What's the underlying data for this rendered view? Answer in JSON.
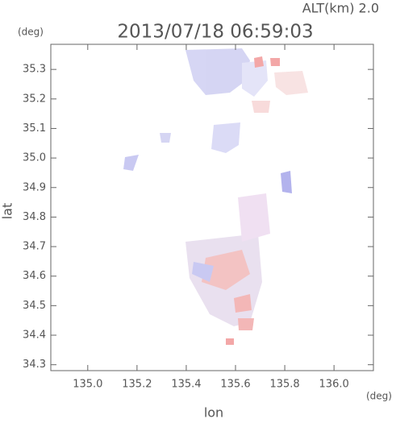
{
  "chart_data": {
    "type": "map",
    "title": "2013/07/18 06:59:03",
    "subtitle": "ALT(km) 2.0",
    "y_unit": "(deg)",
    "x_unit": "(deg)",
    "y_label": "lat",
    "x_label": "lon",
    "xlim": [
      134.85,
      136.16
    ],
    "xticks": [
      {
        "value": 135,
        "label": "135.0"
      },
      135.2,
      135.4,
      135.6,
      135.8,
      {
        "value": 136,
        "label": "136.0"
      }
    ],
    "ylim": [
      34.28,
      35.385
    ],
    "yticks": [
      34.3,
      34.4,
      34.5,
      34.6,
      34.7,
      34.8,
      34.9,
      {
        "value": 35,
        "label": "35.0"
      },
      35.1,
      35.2,
      35.3
    ]
  }
}
